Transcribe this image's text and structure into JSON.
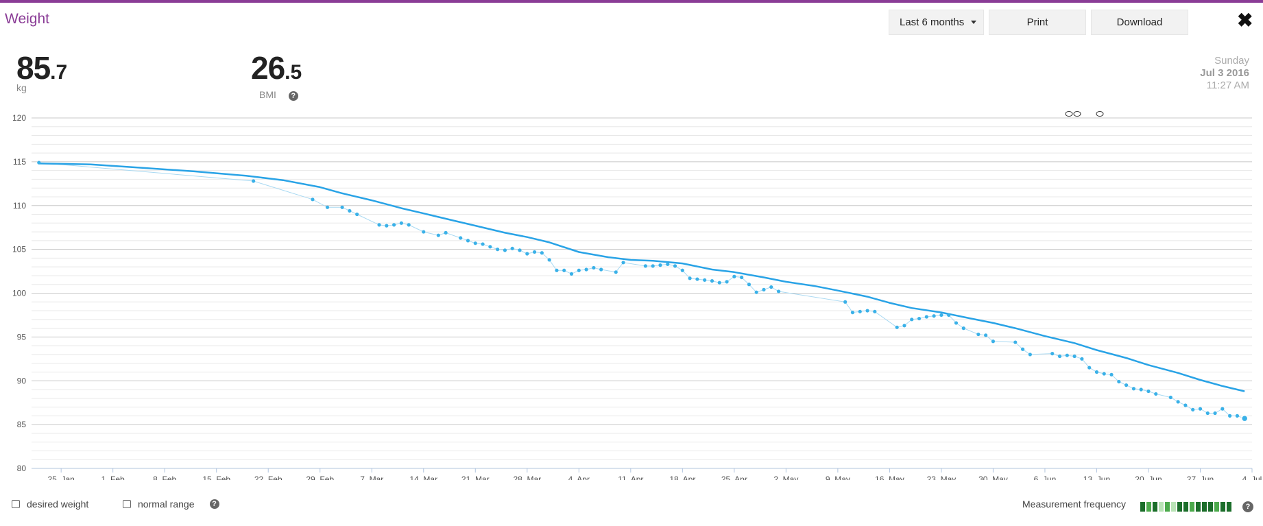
{
  "header": {
    "title": "Weight",
    "range_label": "Last 6 months",
    "print_label": "Print",
    "download_label": "Download",
    "close_icon": "close-icon"
  },
  "stats": {
    "weight_int": "85",
    "weight_dec": ".7",
    "weight_unit": "kg",
    "bmi_int": "26",
    "bmi_dec": ".5",
    "bmi_label": "BMI"
  },
  "date": {
    "weekday": "Sunday",
    "date": "Jul 3 2016",
    "time": "11:27 AM"
  },
  "footer": {
    "desired_weight": "desired weight",
    "normal_range": "normal range",
    "measurement_frequency": "Measurement frequency",
    "freq_levels": [
      3,
      2,
      3,
      1,
      2,
      1,
      3,
      3,
      2,
      3,
      3,
      3,
      2,
      3,
      3
    ]
  },
  "colors": {
    "accent": "#8a3c96",
    "line": "#29a3e6",
    "points": "#3ab1e8",
    "raw_line": "#a9d9f2",
    "grid": "#d8d8d8"
  },
  "chart_data": {
    "type": "line",
    "ylim": [
      80,
      120
    ],
    "yticks": [
      80,
      85,
      90,
      95,
      100,
      105,
      110,
      115,
      120
    ],
    "xlim": [
      "2016-01-21",
      "2016-07-04"
    ],
    "xticks": [
      {
        "label": "25. Jan",
        "date": "2016-01-25"
      },
      {
        "label": "1. Feb",
        "date": "2016-02-01"
      },
      {
        "label": "8. Feb",
        "date": "2016-02-08"
      },
      {
        "label": "15. Feb",
        "date": "2016-02-15"
      },
      {
        "label": "22. Feb",
        "date": "2016-02-22"
      },
      {
        "label": "29. Feb",
        "date": "2016-02-29"
      },
      {
        "label": "7. Mar",
        "date": "2016-03-07"
      },
      {
        "label": "14. Mar",
        "date": "2016-03-14"
      },
      {
        "label": "21. Mar",
        "date": "2016-03-21"
      },
      {
        "label": "28. Mar",
        "date": "2016-03-28"
      },
      {
        "label": "4. Apr",
        "date": "2016-04-04"
      },
      {
        "label": "11. Apr",
        "date": "2016-04-11"
      },
      {
        "label": "18. Apr",
        "date": "2016-04-18"
      },
      {
        "label": "25. Apr",
        "date": "2016-04-25"
      },
      {
        "label": "2. May",
        "date": "2016-05-02"
      },
      {
        "label": "9. May",
        "date": "2016-05-09"
      },
      {
        "label": "16. May",
        "date": "2016-05-16"
      },
      {
        "label": "23. May",
        "date": "2016-05-23"
      },
      {
        "label": "30. May",
        "date": "2016-05-30"
      },
      {
        "label": "6. Jun",
        "date": "2016-06-06"
      },
      {
        "label": "13. Jun",
        "date": "2016-06-13"
      },
      {
        "label": "20. Jun",
        "date": "2016-06-20"
      },
      {
        "label": "27. Jun",
        "date": "2016-06-27"
      },
      {
        "label": "4. Jul",
        "date": "2016-07-04"
      }
    ],
    "series": [
      {
        "type": "scatter",
        "points": [
          [
            "2016-01-22",
            114.9
          ],
          [
            "2016-02-20",
            112.8
          ],
          [
            "2016-02-28",
            110.7
          ],
          [
            "2016-03-01",
            109.8
          ],
          [
            "2016-03-03",
            109.8
          ],
          [
            "2016-03-04",
            109.4
          ],
          [
            "2016-03-05",
            109.0
          ],
          [
            "2016-03-08",
            107.8
          ],
          [
            "2016-03-09",
            107.7
          ],
          [
            "2016-03-10",
            107.8
          ],
          [
            "2016-03-11",
            108.0
          ],
          [
            "2016-03-12",
            107.8
          ],
          [
            "2016-03-14",
            107.0
          ],
          [
            "2016-03-16",
            106.6
          ],
          [
            "2016-03-17",
            106.9
          ],
          [
            "2016-03-19",
            106.3
          ],
          [
            "2016-03-20",
            106.0
          ],
          [
            "2016-03-21",
            105.7
          ],
          [
            "2016-03-22",
            105.6
          ],
          [
            "2016-03-23",
            105.3
          ],
          [
            "2016-03-24",
            105.0
          ],
          [
            "2016-03-25",
            104.9
          ],
          [
            "2016-03-26",
            105.1
          ],
          [
            "2016-03-27",
            104.9
          ],
          [
            "2016-03-28",
            104.5
          ],
          [
            "2016-03-29",
            104.7
          ],
          [
            "2016-03-30",
            104.6
          ],
          [
            "2016-03-31",
            103.8
          ],
          [
            "2016-04-01",
            102.6
          ],
          [
            "2016-04-02",
            102.6
          ],
          [
            "2016-04-03",
            102.2
          ],
          [
            "2016-04-04",
            102.6
          ],
          [
            "2016-04-05",
            102.7
          ],
          [
            "2016-04-06",
            102.9
          ],
          [
            "2016-04-07",
            102.7
          ],
          [
            "2016-04-09",
            102.4
          ],
          [
            "2016-04-10",
            103.5
          ],
          [
            "2016-04-13",
            103.1
          ],
          [
            "2016-04-14",
            103.1
          ],
          [
            "2016-04-15",
            103.2
          ],
          [
            "2016-04-16",
            103.3
          ],
          [
            "2016-04-17",
            103.1
          ],
          [
            "2016-04-18",
            102.6
          ],
          [
            "2016-04-19",
            101.7
          ],
          [
            "2016-04-20",
            101.6
          ],
          [
            "2016-04-21",
            101.5
          ],
          [
            "2016-04-22",
            101.4
          ],
          [
            "2016-04-23",
            101.2
          ],
          [
            "2016-04-24",
            101.3
          ],
          [
            "2016-04-25",
            101.9
          ],
          [
            "2016-04-26",
            101.8
          ],
          [
            "2016-04-27",
            101.0
          ],
          [
            "2016-04-28",
            100.1
          ],
          [
            "2016-04-29",
            100.4
          ],
          [
            "2016-04-30",
            100.7
          ],
          [
            "2016-05-01",
            100.2
          ],
          [
            "2016-05-10",
            99.0
          ],
          [
            "2016-05-11",
            97.8
          ],
          [
            "2016-05-12",
            97.9
          ],
          [
            "2016-05-13",
            98.0
          ],
          [
            "2016-05-14",
            97.9
          ],
          [
            "2016-05-17",
            96.1
          ],
          [
            "2016-05-18",
            96.3
          ],
          [
            "2016-05-19",
            97.0
          ],
          [
            "2016-05-20",
            97.1
          ],
          [
            "2016-05-21",
            97.3
          ],
          [
            "2016-05-22",
            97.4
          ],
          [
            "2016-05-23",
            97.5
          ],
          [
            "2016-05-24",
            97.5
          ],
          [
            "2016-05-25",
            96.6
          ],
          [
            "2016-05-26",
            96.0
          ],
          [
            "2016-05-28",
            95.3
          ],
          [
            "2016-05-29",
            95.2
          ],
          [
            "2016-05-30",
            94.5
          ],
          [
            "2016-06-02",
            94.4
          ],
          [
            "2016-06-03",
            93.6
          ],
          [
            "2016-06-04",
            93.0
          ],
          [
            "2016-06-07",
            93.1
          ],
          [
            "2016-06-08",
            92.8
          ],
          [
            "2016-06-09",
            92.9
          ],
          [
            "2016-06-10",
            92.8
          ],
          [
            "2016-06-11",
            92.5
          ],
          [
            "2016-06-12",
            91.5
          ],
          [
            "2016-06-13",
            91.0
          ],
          [
            "2016-06-14",
            90.8
          ],
          [
            "2016-06-15",
            90.7
          ],
          [
            "2016-06-16",
            89.9
          ],
          [
            "2016-06-17",
            89.5
          ],
          [
            "2016-06-18",
            89.1
          ],
          [
            "2016-06-19",
            89.0
          ],
          [
            "2016-06-20",
            88.8
          ],
          [
            "2016-06-21",
            88.5
          ],
          [
            "2016-06-23",
            88.1
          ],
          [
            "2016-06-24",
            87.6
          ],
          [
            "2016-06-25",
            87.2
          ],
          [
            "2016-06-26",
            86.7
          ],
          [
            "2016-06-27",
            86.8
          ],
          [
            "2016-06-28",
            86.3
          ],
          [
            "2016-06-29",
            86.3
          ],
          [
            "2016-06-30",
            86.8
          ],
          [
            "2016-07-01",
            86.0
          ],
          [
            "2016-07-02",
            86.0
          ],
          [
            "2016-07-03",
            85.7
          ]
        ]
      },
      {
        "type": "line",
        "points": [
          [
            "2016-01-22",
            114.8
          ],
          [
            "2016-01-29",
            114.7
          ],
          [
            "2016-02-05",
            114.3
          ],
          [
            "2016-02-12",
            113.9
          ],
          [
            "2016-02-19",
            113.4
          ],
          [
            "2016-02-24",
            112.9
          ],
          [
            "2016-02-29",
            112.1
          ],
          [
            "2016-03-03",
            111.4
          ],
          [
            "2016-03-07",
            110.6
          ],
          [
            "2016-03-11",
            109.7
          ],
          [
            "2016-03-14",
            109.1
          ],
          [
            "2016-03-18",
            108.3
          ],
          [
            "2016-03-21",
            107.7
          ],
          [
            "2016-03-25",
            106.9
          ],
          [
            "2016-03-28",
            106.4
          ],
          [
            "2016-03-31",
            105.8
          ],
          [
            "2016-04-04",
            104.7
          ],
          [
            "2016-04-08",
            104.1
          ],
          [
            "2016-04-11",
            103.8
          ],
          [
            "2016-04-14",
            103.7
          ],
          [
            "2016-04-18",
            103.4
          ],
          [
            "2016-04-22",
            102.7
          ],
          [
            "2016-04-25",
            102.4
          ],
          [
            "2016-04-29",
            101.8
          ],
          [
            "2016-05-02",
            101.3
          ],
          [
            "2016-05-06",
            100.8
          ],
          [
            "2016-05-09",
            100.3
          ],
          [
            "2016-05-13",
            99.6
          ],
          [
            "2016-05-16",
            98.9
          ],
          [
            "2016-05-19",
            98.3
          ],
          [
            "2016-05-23",
            97.8
          ],
          [
            "2016-05-27",
            97.1
          ],
          [
            "2016-05-30",
            96.6
          ],
          [
            "2016-06-02",
            96.0
          ],
          [
            "2016-06-06",
            95.1
          ],
          [
            "2016-06-10",
            94.3
          ],
          [
            "2016-06-13",
            93.5
          ],
          [
            "2016-06-17",
            92.6
          ],
          [
            "2016-06-20",
            91.8
          ],
          [
            "2016-06-24",
            90.9
          ],
          [
            "2016-06-27",
            90.1
          ],
          [
            "2016-06-30",
            89.4
          ],
          [
            "2016-07-03",
            88.8
          ]
        ]
      }
    ]
  }
}
